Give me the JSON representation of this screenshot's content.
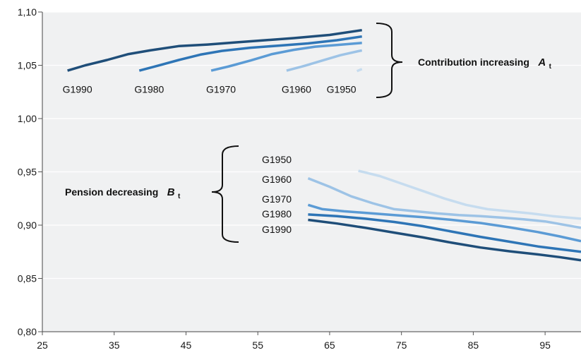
{
  "chart_data": {
    "type": "line",
    "xlim": [
      25,
      100
    ],
    "ylim": [
      0.8,
      1.1
    ],
    "x_ticks": [
      25,
      35,
      45,
      55,
      65,
      75,
      85,
      95
    ],
    "y_ticks": [
      "1,10",
      "1,05",
      "1,00",
      "0,95",
      "0,90",
      "0,85",
      "0,80"
    ],
    "y_tick_values": [
      1.1,
      1.05,
      1.0,
      0.95,
      0.9,
      0.85,
      0.8
    ],
    "grid": "horizontal",
    "plot_background": "#f0f1f2",
    "colors": {
      "G1990": "#1f4e79",
      "G1980": "#2e75b6",
      "G1970": "#5b9bd5",
      "G1960": "#9dc3e6",
      "G1950": "#c6dcef"
    },
    "annotations": {
      "contribution": {
        "label": "Contribution increasing",
        "symbol": "A",
        "subscript": "t"
      },
      "pension": {
        "label": "Pension decreasing",
        "symbol": "B",
        "subscript": "t"
      }
    },
    "contribution_series": [
      {
        "name": "G1990",
        "label": "G1990",
        "x": [
          28.5,
          31,
          34,
          37,
          40,
          44,
          48,
          52,
          56,
          60,
          65,
          69.5
        ],
        "y": [
          1.045,
          1.05,
          1.055,
          1.0605,
          1.064,
          1.068,
          1.0695,
          1.0715,
          1.0735,
          1.0755,
          1.0785,
          1.083
        ]
      },
      {
        "name": "G1980",
        "label": "G1980",
        "x": [
          38.5,
          41,
          44,
          47,
          50,
          54,
          58,
          62,
          66,
          69.5
        ],
        "y": [
          1.045,
          1.0495,
          1.055,
          1.06,
          1.0635,
          1.0665,
          1.0685,
          1.0705,
          1.0735,
          1.077
        ]
      },
      {
        "name": "G1970",
        "label": "G1970",
        "x": [
          48.5,
          51,
          54,
          57,
          60,
          63,
          66,
          69.5
        ],
        "y": [
          1.045,
          1.049,
          1.0545,
          1.0605,
          1.0645,
          1.0675,
          1.069,
          1.071
        ]
      },
      {
        "name": "G1960",
        "label": "G1960",
        "x": [
          59,
          61.5,
          64,
          66.5,
          69.5
        ],
        "y": [
          1.045,
          1.0495,
          1.0545,
          1.0595,
          1.064
        ]
      },
      {
        "name": "G1950",
        "label": "G1950",
        "x": [
          68.8,
          69.5
        ],
        "y": [
          1.0445,
          1.0465
        ]
      }
    ],
    "pension_series": [
      {
        "name": "G1950",
        "label": "G1950",
        "x": [
          69,
          72,
          75,
          78,
          81,
          84,
          87,
          90,
          93,
          96,
          100
        ],
        "y": [
          0.951,
          0.946,
          0.939,
          0.932,
          0.925,
          0.919,
          0.915,
          0.913,
          0.911,
          0.9085,
          0.906
        ]
      },
      {
        "name": "G1960",
        "label": "G1960",
        "x": [
          62,
          65,
          68,
          71,
          74,
          77,
          80,
          83,
          86,
          89,
          92,
          95,
          100
        ],
        "y": [
          0.944,
          0.936,
          0.927,
          0.9205,
          0.915,
          0.913,
          0.911,
          0.9095,
          0.9085,
          0.907,
          0.9055,
          0.9035,
          0.8975
        ]
      },
      {
        "name": "G1970",
        "label": "G1970",
        "x": [
          62,
          64,
          67,
          70,
          74,
          78,
          82,
          86,
          90,
          94,
          97,
          100
        ],
        "y": [
          0.919,
          0.915,
          0.913,
          0.9115,
          0.9095,
          0.9075,
          0.905,
          0.902,
          0.898,
          0.8935,
          0.8895,
          0.885
        ]
      },
      {
        "name": "G1980",
        "label": "G1980",
        "x": [
          62,
          66,
          70,
          74,
          78,
          82,
          86,
          90,
          94,
          97,
          100
        ],
        "y": [
          0.91,
          0.9085,
          0.906,
          0.903,
          0.899,
          0.894,
          0.889,
          0.8845,
          0.88,
          0.8775,
          0.875
        ]
      },
      {
        "name": "G1990",
        "label": "G1990",
        "x": [
          62,
          66,
          70,
          74,
          78,
          82,
          86,
          90,
          94,
          97,
          100
        ],
        "y": [
          0.905,
          0.9015,
          0.8975,
          0.893,
          0.8885,
          0.8835,
          0.879,
          0.8755,
          0.8725,
          0.87,
          0.867
        ]
      }
    ]
  }
}
